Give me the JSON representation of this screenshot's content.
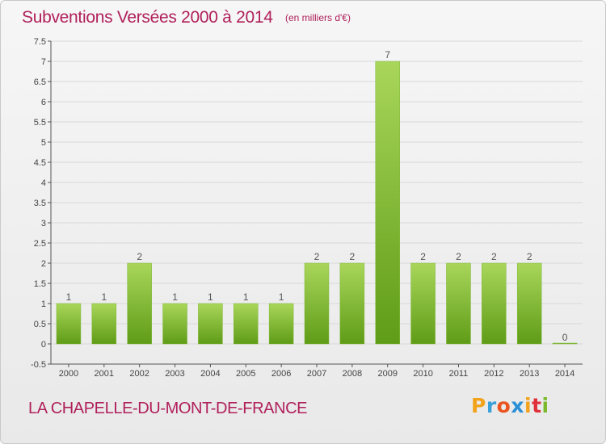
{
  "header": {
    "title": "Subventions Versées 2000 à 2014",
    "subtitle": "(en milliers d'€)"
  },
  "footer": {
    "commune": "LA CHAPELLE-DU-MONT-DE-FRANCE",
    "brand_letters": [
      "P",
      "r",
      "o",
      "x",
      "i",
      "t",
      "i"
    ],
    "brand_colors": [
      "#f3a21b",
      "#3aa0d8",
      "#e9541f",
      "#2b8fd6",
      "#f3a21b",
      "#e0303a",
      "#7ab929"
    ]
  },
  "colors": {
    "bar_top": "#a9d65a",
    "bar_bottom": "#5f9c17",
    "grid": "#d8d8d8",
    "axis": "#555555"
  },
  "chart_data": {
    "type": "bar",
    "title": "Subventions Versées 2000 à 2014",
    "subtitle": "(en milliers d'€)",
    "xlabel": "",
    "ylabel": "",
    "categories": [
      "2000",
      "2001",
      "2002",
      "2003",
      "2004",
      "2005",
      "2006",
      "2007",
      "2008",
      "2009",
      "2010",
      "2011",
      "2012",
      "2013",
      "2014"
    ],
    "values": [
      1,
      1,
      2,
      1,
      1,
      1,
      1,
      2,
      2,
      7,
      2,
      2,
      2,
      2,
      0
    ],
    "value_labels": [
      "1",
      "1",
      "2",
      "1",
      "1",
      "1",
      "1",
      "2",
      "2",
      "7",
      "2",
      "2",
      "2",
      "2",
      "0"
    ],
    "ylim": [
      -0.5,
      7.5
    ],
    "yticks": [
      -0.5,
      0,
      0.5,
      1,
      1.5,
      2,
      2.5,
      3,
      3.5,
      4,
      4.5,
      5,
      5.5,
      6,
      6.5,
      7,
      7.5
    ],
    "ytick_labels": [
      "-0.5",
      "0",
      "0.5",
      "1",
      "1.5",
      "2",
      "2.5",
      "3",
      "3.5",
      "4",
      "4.5",
      "5",
      "5.5",
      "6",
      "6.5",
      "7",
      "7.5"
    ],
    "grid": true,
    "legend": "none"
  }
}
